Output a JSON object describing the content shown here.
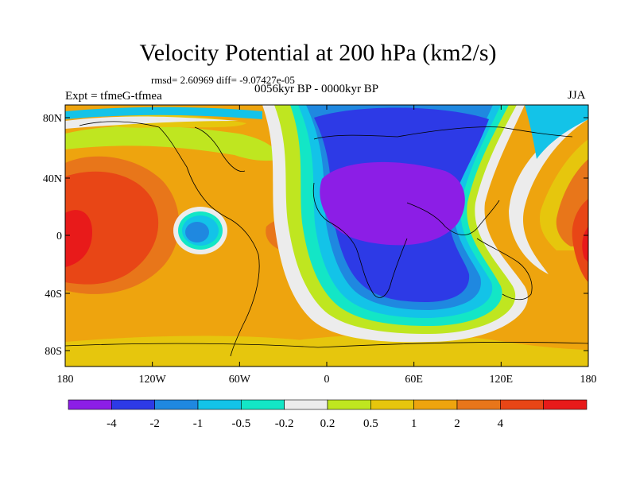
{
  "map": {
    "title": "Velocity Potential at 200 hPa (km2/s)",
    "stats": "rmsd= 2.60969 diff= -9.07427e-05",
    "experiment": "Expt = tfmeG-tfmea",
    "period": "0056kyr BP - 0000kyr BP",
    "season": "JJA",
    "lat_ticks": [
      "80N",
      "40N",
      "0",
      "40S",
      "80S"
    ],
    "lon_ticks": [
      "180",
      "120W",
      "60W",
      "0",
      "60E",
      "120E",
      "180"
    ]
  },
  "colorbar": {
    "colors": [
      "#8c1ee6",
      "#2d3ae6",
      "#1f88e0",
      "#13c3e8",
      "#13e6c6",
      "#ececec",
      "#bfe620",
      "#e6c60d",
      "#eea40e",
      "#e8761a",
      "#e84616",
      "#e81a1a"
    ],
    "labels": [
      "-4",
      "-2",
      "-1",
      "-0.5",
      "-0.2",
      "0.2",
      "0.5",
      "1",
      "2",
      "4"
    ]
  }
}
